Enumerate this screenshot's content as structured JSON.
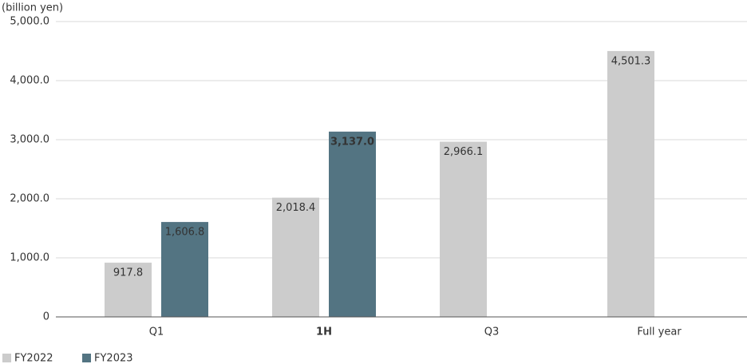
{
  "chart_data": {
    "type": "bar",
    "y_label": "(billion yen)",
    "categories": [
      "Q1",
      "1H",
      "Q3",
      "Full year"
    ],
    "series": [
      {
        "name": "FY2022",
        "color": "#cccccc",
        "values": [
          917.8,
          2018.4,
          2966.1,
          4501.3
        ],
        "value_labels": [
          "917.8",
          "2,018.4",
          "2,966.1",
          "4,501.3"
        ]
      },
      {
        "name": "FY2023",
        "color": "#537482",
        "values": [
          1606.8,
          3137.0,
          null,
          null
        ],
        "value_labels": [
          "1,606.8",
          "3,137.0",
          null,
          null
        ]
      }
    ],
    "ylim": [
      0,
      5000
    ],
    "yticks": [
      0,
      {
        "value": 1000,
        "label": "1,000.0"
      },
      {
        "value": 2000,
        "label": "2,000.0"
      },
      {
        "value": 3000,
        "label": "3,000.0"
      },
      {
        "value": 4000,
        "label": "4,000.0"
      },
      {
        "value": 5000,
        "label": "5,000.0"
      }
    ],
    "grid": true
  }
}
